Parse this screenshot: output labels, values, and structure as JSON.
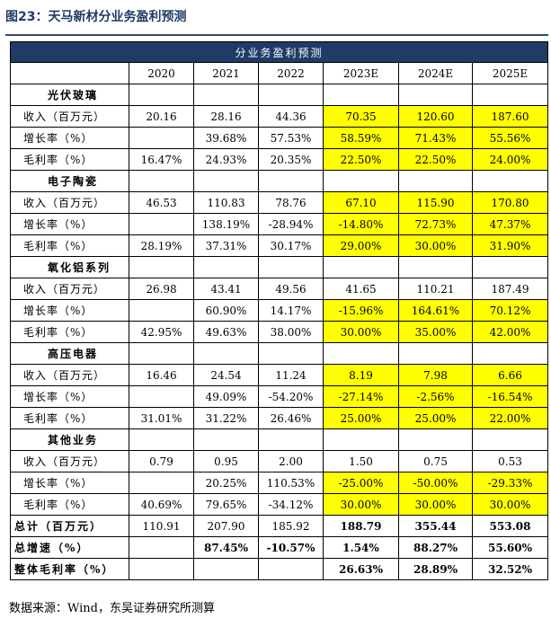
{
  "title": "图23：天马新材分业务盈利预测",
  "table": {
    "banner": "分业务盈利预测",
    "years": [
      "2020",
      "2021",
      "2022",
      "2023E",
      "2024E",
      "2025E"
    ],
    "sections": [
      {
        "name": "光伏玻璃",
        "rows": [
          {
            "label": "收入（百万元）",
            "values": [
              "20.16",
              "28.16",
              "44.36",
              "70.35",
              "120.60",
              "187.60"
            ],
            "highlight": [
              false,
              false,
              false,
              true,
              true,
              true
            ]
          },
          {
            "label": "增长率（%）",
            "values": [
              "",
              "39.68%",
              "57.53%",
              "58.59%",
              "71.43%",
              "55.56%"
            ],
            "highlight": [
              false,
              false,
              false,
              true,
              true,
              true
            ]
          },
          {
            "label": "毛利率（%）",
            "values": [
              "16.47%",
              "24.93%",
              "20.35%",
              "22.50%",
              "22.50%",
              "24.00%"
            ],
            "highlight": [
              false,
              false,
              false,
              true,
              true,
              true
            ]
          }
        ]
      },
      {
        "name": "电子陶瓷",
        "rows": [
          {
            "label": "收入（百万元）",
            "values": [
              "46.53",
              "110.83",
              "78.76",
              "67.10",
              "115.90",
              "170.80"
            ],
            "highlight": [
              false,
              false,
              false,
              true,
              true,
              true
            ]
          },
          {
            "label": "增长率（%）",
            "values": [
              "",
              "138.19%",
              "-28.94%",
              "-14.80%",
              "72.73%",
              "47.37%"
            ],
            "highlight": [
              false,
              false,
              false,
              true,
              true,
              true
            ]
          },
          {
            "label": "毛利率（%）",
            "values": [
              "28.19%",
              "37.31%",
              "30.17%",
              "29.00%",
              "30.00%",
              "31.90%"
            ],
            "highlight": [
              false,
              false,
              false,
              true,
              true,
              true
            ]
          }
        ]
      },
      {
        "name": "氧化铝系列",
        "rows": [
          {
            "label": "收入（百万元）",
            "values": [
              "26.98",
              "43.41",
              "49.56",
              "41.65",
              "110.21",
              "187.49"
            ],
            "highlight": [
              false,
              false,
              false,
              false,
              false,
              false
            ]
          },
          {
            "label": "增长率（%）",
            "values": [
              "",
              "60.90%",
              "14.17%",
              "-15.96%",
              "164.61%",
              "70.12%"
            ],
            "highlight": [
              false,
              false,
              false,
              true,
              true,
              true
            ]
          },
          {
            "label": "毛利率（%）",
            "values": [
              "42.95%",
              "49.63%",
              "38.00%",
              "30.00%",
              "35.00%",
              "42.00%"
            ],
            "highlight": [
              false,
              false,
              false,
              true,
              true,
              true
            ]
          }
        ]
      },
      {
        "name": "高压电器",
        "rows": [
          {
            "label": "收入（百万元）",
            "values": [
              "16.46",
              "24.54",
              "11.24",
              "8.19",
              "7.98",
              "6.66"
            ],
            "highlight": [
              false,
              false,
              false,
              true,
              true,
              true
            ]
          },
          {
            "label": "增长率（%）",
            "values": [
              "",
              "49.09%",
              "-54.20%",
              "-27.14%",
              "-2.56%",
              "-16.54%"
            ],
            "highlight": [
              false,
              false,
              false,
              true,
              true,
              true
            ]
          },
          {
            "label": "毛利率（%）",
            "values": [
              "31.01%",
              "31.22%",
              "26.46%",
              "25.00%",
              "25.00%",
              "22.00%"
            ],
            "highlight": [
              false,
              false,
              false,
              true,
              true,
              true
            ]
          }
        ]
      },
      {
        "name": "其他业务",
        "rows": [
          {
            "label": "收入（百万元）",
            "values": [
              "0.79",
              "0.95",
              "2.00",
              "1.50",
              "0.75",
              "0.53"
            ],
            "highlight": [
              false,
              false,
              false,
              false,
              false,
              false
            ]
          },
          {
            "label": "增长率（%）",
            "values": [
              "",
              "20.25%",
              "110.53%",
              "-25.00%",
              "-50.00%",
              "-29.33%"
            ],
            "highlight": [
              false,
              false,
              false,
              true,
              true,
              true
            ]
          },
          {
            "label": "毛利率（%）",
            "values": [
              "40.69%",
              "79.65%",
              "-34.12%",
              "30.00%",
              "30.00%",
              "30.00%"
            ],
            "highlight": [
              false,
              false,
              false,
              true,
              true,
              true
            ]
          }
        ]
      }
    ],
    "totals": [
      {
        "label": "总计（百万元）",
        "values": [
          "110.91",
          "207.90",
          "185.92",
          "188.79",
          "355.44",
          "553.08"
        ],
        "bold": [
          false,
          false,
          false,
          true,
          true,
          true
        ]
      },
      {
        "label": "总增速（%）",
        "values": [
          "",
          "87.45%",
          "-10.57%",
          "1.54%",
          "88.27%",
          "55.60%"
        ],
        "bold": [
          false,
          true,
          true,
          true,
          true,
          true
        ]
      },
      {
        "label": "整体毛利率（%）",
        "values": [
          "",
          "",
          "",
          "26.63%",
          "28.89%",
          "32.52%"
        ],
        "bold": [
          false,
          false,
          false,
          true,
          true,
          true
        ]
      }
    ]
  },
  "source": "数据来源：Wind，东吴证券研究所测算"
}
